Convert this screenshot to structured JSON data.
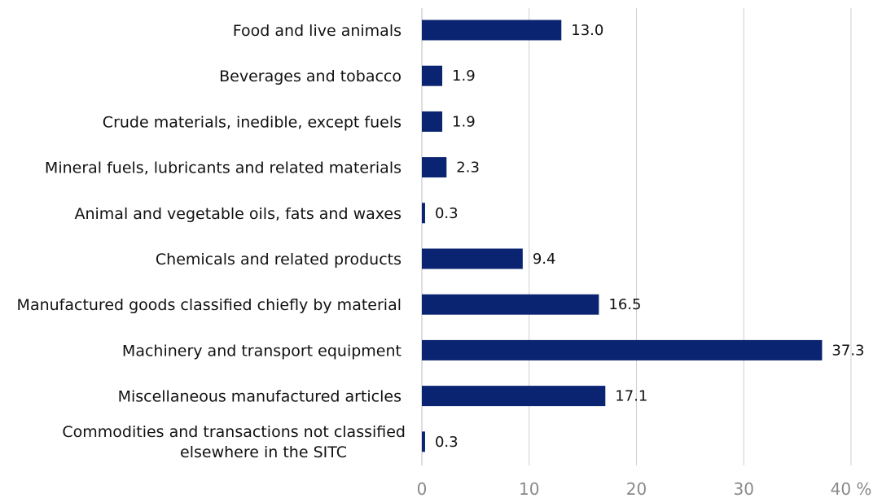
{
  "chart_data": {
    "type": "bar",
    "orientation": "horizontal",
    "categories": [
      "Food and live animals",
      "Beverages and tobacco",
      "Crude materials, inedible, except fuels",
      "Mineral fuels, lubricants and related materials",
      "Animal and vegetable oils, fats and waxes",
      "Chemicals and related products",
      "Manufactured goods classified chiefly by material",
      "Machinery and transport equipment",
      "Miscellaneous manufactured articles",
      "Commodities and transactions not classified elsewhere in the SITC"
    ],
    "values": [
      13.0,
      1.9,
      1.9,
      2.3,
      0.3,
      9.4,
      16.5,
      37.3,
      17.1,
      0.3
    ],
    "value_labels": [
      "13.0",
      "1.9",
      "1.9",
      "2.3",
      "0.3",
      "9.4",
      "16.5",
      "37.3",
      "17.1",
      "0.3"
    ],
    "x_ticks": [
      0,
      10,
      20,
      30,
      40
    ],
    "x_tick_labels": [
      "0",
      "10",
      "20",
      "30",
      "40 %"
    ],
    "xlim": [
      0,
      40
    ],
    "grid": "vertical",
    "legend": "none",
    "bar_color": "#0a2472",
    "title": "",
    "xlabel": "",
    "ylabel": ""
  }
}
